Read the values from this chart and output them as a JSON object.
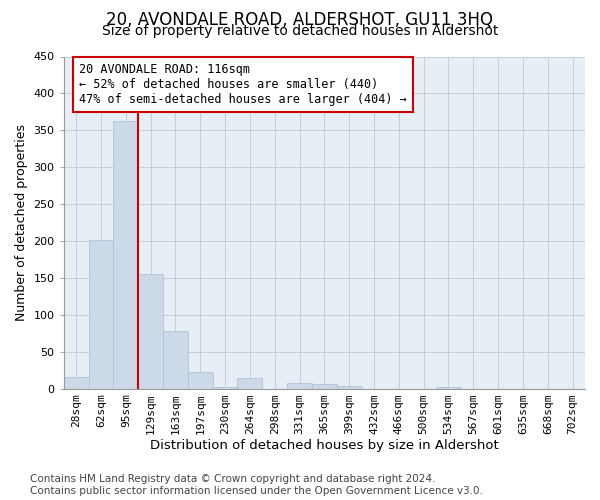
{
  "title": "20, AVONDALE ROAD, ALDERSHOT, GU11 3HQ",
  "subtitle": "Size of property relative to detached houses in Aldershot",
  "xlabel": "Distribution of detached houses by size in Aldershot",
  "ylabel": "Number of detached properties",
  "footer": "Contains HM Land Registry data © Crown copyright and database right 2024.\nContains public sector information licensed under the Open Government Licence v3.0.",
  "bar_labels": [
    "28sqm",
    "62sqm",
    "95sqm",
    "129sqm",
    "163sqm",
    "197sqm",
    "230sqm",
    "264sqm",
    "298sqm",
    "331sqm",
    "365sqm",
    "399sqm",
    "432sqm",
    "466sqm",
    "500sqm",
    "534sqm",
    "567sqm",
    "601sqm",
    "635sqm",
    "668sqm",
    "702sqm"
  ],
  "bar_values": [
    16,
    201,
    362,
    155,
    78,
    22,
    2,
    14,
    0,
    8,
    6,
    4,
    0,
    0,
    0,
    2,
    0,
    0,
    0,
    0,
    0
  ],
  "bar_color": "#ccd9e8",
  "bar_edge_color": "#aabfd4",
  "vline_x_index": 3.0,
  "vline_color": "#cc0000",
  "annotation_text": "20 AVONDALE ROAD: 116sqm\n← 52% of detached houses are smaller (440)\n47% of semi-detached houses are larger (404) →",
  "annotation_box_facecolor": "#ffffff",
  "annotation_box_edgecolor": "#cc0000",
  "ylim": [
    0,
    450
  ],
  "yticks": [
    0,
    50,
    100,
    150,
    200,
    250,
    300,
    350,
    400,
    450
  ],
  "plot_bg_color": "#e8eef5",
  "fig_bg_color": "#ffffff",
  "grid_color": "#c0c8d0",
  "title_fontsize": 12,
  "subtitle_fontsize": 10,
  "xlabel_fontsize": 9.5,
  "ylabel_fontsize": 9,
  "tick_fontsize": 8,
  "annotation_fontsize": 8.5,
  "footer_fontsize": 7.5
}
